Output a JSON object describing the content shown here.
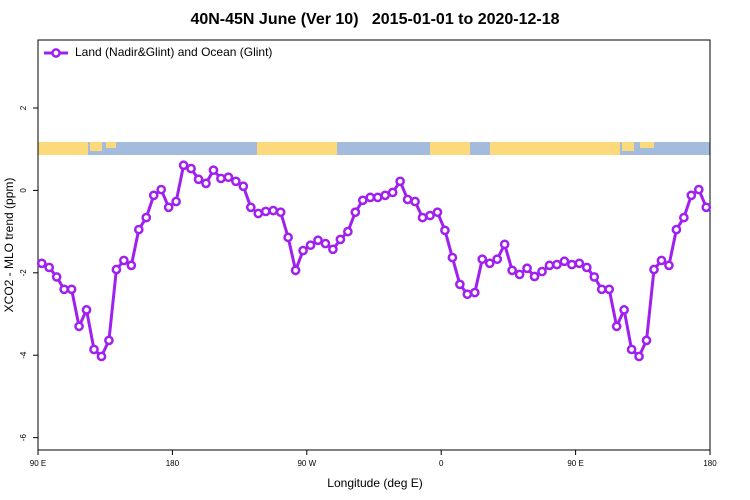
{
  "chart_data": {
    "type": "line",
    "title": "40N-45N June (Ver 10)   2015-01-01 to 2020-12-18",
    "x_label": "Longitude (deg E)",
    "y_label": "XCO2 - MLO trend (ppm)",
    "x": [
      92.5,
      97.5,
      102.5,
      107.5,
      112.5,
      117.5,
      122.5,
      127.5,
      132.5,
      137.5,
      142.5,
      147.5,
      152.5,
      157.5,
      162.5,
      167.5,
      172.5,
      177.5,
      182.5,
      187.5,
      192.5,
      197.5,
      202.5,
      207.5,
      212.5,
      217.5,
      222.5,
      227.5,
      232.5,
      237.5,
      242.5,
      247.5,
      252.5,
      257.5,
      262.5,
      267.5,
      272.5,
      277.5,
      282.5,
      287.5,
      292.5,
      297.5,
      302.5,
      307.5,
      312.5,
      317.5,
      322.5,
      327.5,
      332.5,
      337.5,
      342.5,
      347.5,
      352.5,
      357.5,
      362.5,
      367.5,
      372.5,
      377.5,
      382.5,
      387.5,
      392.5,
      397.5,
      402.5,
      407.5,
      412.5,
      417.5,
      422.5,
      427.5,
      432.5,
      437.5,
      442.5,
      447.5,
      452.5,
      457.5,
      462.5,
      467.5,
      472.5,
      477.5,
      482.5,
      487.5,
      492.5,
      497.5,
      502.5,
      507.5,
      512.5,
      517.5,
      522.5,
      527.5,
      532.5,
      537.5
    ],
    "series": [
      {
        "name": "Land (Nadir&Glint) and Ocean (Glint)",
        "color": "#a020f0",
        "values": [
          -1.77,
          -1.87,
          -2.1,
          -2.4,
          -2.4,
          -3.3,
          -2.9,
          -3.86,
          -4.03,
          -3.64,
          -1.92,
          -1.7,
          -1.82,
          -0.95,
          -0.66,
          -0.12,
          0.02,
          -0.41,
          -0.27,
          0.61,
          0.53,
          0.27,
          0.17,
          0.49,
          0.29,
          0.32,
          0.22,
          0.1,
          -0.41,
          -0.56,
          -0.51,
          -0.49,
          -0.53,
          -1.14,
          -1.94,
          -1.46,
          -1.33,
          -1.21,
          -1.29,
          -1.43,
          -1.19,
          -1.0,
          -0.53,
          -0.24,
          -0.17,
          -0.17,
          -0.12,
          -0.05,
          0.22,
          -0.22,
          -0.27,
          -0.66,
          -0.61,
          -0.53,
          -0.97,
          -1.63,
          -2.28,
          -2.52,
          -2.48,
          -1.67,
          -1.77,
          -1.67,
          -1.31,
          -1.94,
          -2.04,
          -1.89,
          -2.09,
          -1.97,
          -1.82,
          -1.8,
          -1.72,
          -1.8,
          -1.77,
          -1.87,
          -2.1,
          -2.4,
          -2.4,
          -3.3,
          -2.9,
          -3.86,
          -4.03,
          -3.64,
          -1.92,
          -1.7,
          -1.82,
          -0.95,
          -0.66,
          -0.12,
          0.02,
          -0.41
        ]
      }
    ],
    "xlim": [
      90,
      540
    ],
    "xticks": [
      {
        "value": 90,
        "label": "90 E"
      },
      180,
      {
        "value": 270,
        "label": "90 W"
      },
      {
        "value": 360,
        "label": "0"
      },
      {
        "value": 450,
        "label": "90 E"
      },
      {
        "value": 540,
        "label": "180"
      }
    ],
    "ylim": [
      -6.3,
      3.65
    ],
    "yticks": [
      -6,
      -4,
      -2,
      0,
      2
    ],
    "legend": "top-left"
  }
}
